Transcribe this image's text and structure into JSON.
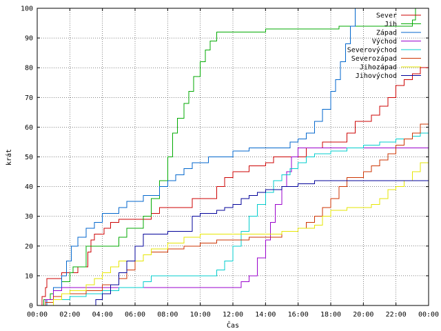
{
  "chart_data": {
    "type": "line",
    "title": "",
    "xlabel": "Čas",
    "ylabel": "krát",
    "xlim": [
      0,
      24
    ],
    "ylim": [
      0,
      100
    ],
    "x_ticks": [
      "00:00",
      "02:00",
      "04:00",
      "06:00",
      "08:00",
      "10:00",
      "12:00",
      "14:00",
      "16:00",
      "18:00",
      "20:00",
      "22:00",
      "00:00"
    ],
    "y_ticks": [
      0,
      10,
      20,
      30,
      40,
      50,
      60,
      70,
      80,
      90,
      100
    ],
    "grid": true,
    "legend_position": "top-right",
    "series": [
      {
        "name": "Sever",
        "color": "#cc0000",
        "points": [
          [
            0,
            0
          ],
          [
            0.3,
            3
          ],
          [
            0.5,
            6
          ],
          [
            0.6,
            9
          ],
          [
            1.5,
            11
          ],
          [
            2.5,
            13
          ],
          [
            3.1,
            18
          ],
          [
            3.3,
            22
          ],
          [
            3.5,
            24
          ],
          [
            4.1,
            26
          ],
          [
            4.5,
            28
          ],
          [
            5.0,
            29
          ],
          [
            6.5,
            29
          ],
          [
            7.0,
            31
          ],
          [
            7.5,
            33
          ],
          [
            8.5,
            33
          ],
          [
            9.5,
            36
          ],
          [
            10.5,
            36
          ],
          [
            11.0,
            40
          ],
          [
            11.5,
            43
          ],
          [
            12.0,
            45
          ],
          [
            13.0,
            47
          ],
          [
            14.0,
            48
          ],
          [
            14.5,
            50
          ],
          [
            15.5,
            50
          ],
          [
            16.5,
            53
          ],
          [
            17.5,
            55
          ],
          [
            18.5,
            55
          ],
          [
            19.0,
            58
          ],
          [
            19.5,
            62
          ],
          [
            20.5,
            64
          ],
          [
            21.0,
            67
          ],
          [
            21.5,
            70
          ],
          [
            22.0,
            74
          ],
          [
            22.5,
            76
          ],
          [
            23.0,
            78
          ],
          [
            23.5,
            80
          ],
          [
            24,
            80
          ]
        ]
      },
      {
        "name": "Jih",
        "color": "#00aa00",
        "points": [
          [
            0,
            0
          ],
          [
            0.4,
            2
          ],
          [
            0.8,
            4
          ],
          [
            1.0,
            6
          ],
          [
            1.5,
            8
          ],
          [
            2.0,
            11
          ],
          [
            2.2,
            13
          ],
          [
            3.0,
            20
          ],
          [
            4.0,
            20
          ],
          [
            5.0,
            23
          ],
          [
            5.5,
            26
          ],
          [
            6.5,
            30
          ],
          [
            7.0,
            36
          ],
          [
            7.5,
            42
          ],
          [
            8.0,
            50
          ],
          [
            8.3,
            58
          ],
          [
            8.6,
            63
          ],
          [
            9.0,
            68
          ],
          [
            9.3,
            72
          ],
          [
            9.6,
            77
          ],
          [
            10.0,
            82
          ],
          [
            10.3,
            86
          ],
          [
            10.6,
            89
          ],
          [
            11.0,
            92
          ],
          [
            12.0,
            92
          ],
          [
            13.0,
            92
          ],
          [
            14.0,
            93
          ],
          [
            15.0,
            93
          ],
          [
            16.0,
            93
          ],
          [
            17.0,
            93
          ],
          [
            18.0,
            93
          ],
          [
            18.5,
            94
          ],
          [
            19.5,
            94
          ],
          [
            20.5,
            94
          ],
          [
            21.5,
            94
          ],
          [
            22.5,
            94
          ],
          [
            23.0,
            96
          ],
          [
            23.2,
            100
          ],
          [
            24,
            100
          ]
        ]
      },
      {
        "name": "Západ",
        "color": "#0066cc",
        "points": [
          [
            0,
            0
          ],
          [
            0.6,
            2
          ],
          [
            1.0,
            6
          ],
          [
            1.5,
            10
          ],
          [
            1.8,
            15
          ],
          [
            2.1,
            20
          ],
          [
            2.5,
            23
          ],
          [
            3.0,
            26
          ],
          [
            3.5,
            28
          ],
          [
            4.0,
            31
          ],
          [
            5.0,
            33
          ],
          [
            5.5,
            35
          ],
          [
            6.5,
            37
          ],
          [
            7.5,
            40
          ],
          [
            8.0,
            42
          ],
          [
            8.5,
            44
          ],
          [
            9.0,
            46
          ],
          [
            9.5,
            48
          ],
          [
            10.5,
            50
          ],
          [
            12.0,
            52
          ],
          [
            13.0,
            53
          ],
          [
            14.0,
            53
          ],
          [
            15.0,
            53
          ],
          [
            15.5,
            55
          ],
          [
            16.0,
            56
          ],
          [
            16.5,
            58
          ],
          [
            17.0,
            62
          ],
          [
            17.5,
            66
          ],
          [
            18.0,
            72
          ],
          [
            18.3,
            76
          ],
          [
            18.6,
            82
          ],
          [
            18.9,
            88
          ],
          [
            19.2,
            94
          ],
          [
            19.5,
            100
          ],
          [
            24,
            100
          ]
        ]
      },
      {
        "name": "Východ",
        "color": "#9900cc",
        "points": [
          [
            0,
            0
          ],
          [
            0.5,
            2
          ],
          [
            1.0,
            5
          ],
          [
            1.5,
            6
          ],
          [
            6.0,
            6
          ],
          [
            7.0,
            6
          ],
          [
            8.0,
            6
          ],
          [
            9.0,
            6
          ],
          [
            10.0,
            6
          ],
          [
            11.0,
            6
          ],
          [
            12.0,
            6
          ],
          [
            12.5,
            8
          ],
          [
            13.0,
            10
          ],
          [
            13.5,
            16
          ],
          [
            14.0,
            22
          ],
          [
            14.3,
            28
          ],
          [
            14.6,
            34
          ],
          [
            15.0,
            40
          ],
          [
            15.3,
            45
          ],
          [
            15.6,
            50
          ],
          [
            16.0,
            53
          ],
          [
            17.0,
            53
          ],
          [
            18.0,
            53
          ],
          [
            19.0,
            53
          ],
          [
            20.0,
            53
          ],
          [
            21.0,
            53
          ],
          [
            22.0,
            53
          ],
          [
            23.0,
            53
          ],
          [
            23.5,
            53
          ],
          [
            24,
            55
          ]
        ]
      },
      {
        "name": "Severovýchod",
        "color": "#00cccc",
        "points": [
          [
            0,
            0
          ],
          [
            1.0,
            2
          ],
          [
            2.0,
            3
          ],
          [
            3.0,
            4
          ],
          [
            4.0,
            5
          ],
          [
            5.0,
            6
          ],
          [
            6.0,
            6
          ],
          [
            6.5,
            8
          ],
          [
            7.0,
            10
          ],
          [
            8.0,
            10
          ],
          [
            9.0,
            10
          ],
          [
            10.0,
            10
          ],
          [
            11.0,
            12
          ],
          [
            11.5,
            15
          ],
          [
            12.0,
            20
          ],
          [
            12.5,
            25
          ],
          [
            13.0,
            30
          ],
          [
            13.5,
            34
          ],
          [
            14.0,
            38
          ],
          [
            14.5,
            42
          ],
          [
            15.0,
            44
          ],
          [
            15.5,
            46
          ],
          [
            16.0,
            48
          ],
          [
            16.5,
            50
          ],
          [
            17.0,
            51
          ],
          [
            18.0,
            52
          ],
          [
            19.0,
            53
          ],
          [
            20.0,
            54
          ],
          [
            21.0,
            55
          ],
          [
            22.0,
            56
          ],
          [
            23.0,
            57
          ],
          [
            23.5,
            58
          ],
          [
            24,
            59
          ]
        ]
      },
      {
        "name": "Severozápad",
        "color": "#cc3300",
        "points": [
          [
            0,
            0
          ],
          [
            0.5,
            1
          ],
          [
            1.0,
            3
          ],
          [
            1.5,
            4
          ],
          [
            3.0,
            5
          ],
          [
            4.0,
            7
          ],
          [
            5.0,
            9
          ],
          [
            5.5,
            12
          ],
          [
            6.0,
            15
          ],
          [
            6.5,
            17
          ],
          [
            7.0,
            18
          ],
          [
            8.0,
            19
          ],
          [
            9.0,
            20
          ],
          [
            10.0,
            21
          ],
          [
            11.0,
            22
          ],
          [
            12.0,
            22
          ],
          [
            13.0,
            23
          ],
          [
            14.0,
            23
          ],
          [
            15.0,
            25
          ],
          [
            16.0,
            26
          ],
          [
            16.5,
            28
          ],
          [
            17.0,
            30
          ],
          [
            17.5,
            33
          ],
          [
            18.0,
            36
          ],
          [
            18.5,
            40
          ],
          [
            19.0,
            43
          ],
          [
            20.0,
            45
          ],
          [
            20.5,
            47
          ],
          [
            21.0,
            49
          ],
          [
            21.5,
            51
          ],
          [
            22.0,
            54
          ],
          [
            22.5,
            56
          ],
          [
            23.0,
            58
          ],
          [
            23.5,
            61
          ],
          [
            24,
            64
          ]
        ]
      },
      {
        "name": "Jihozápad",
        "color": "#e6e600",
        "points": [
          [
            0,
            0
          ],
          [
            1.0,
            2
          ],
          [
            1.5,
            4
          ],
          [
            2.0,
            5
          ],
          [
            3.0,
            7
          ],
          [
            3.5,
            9
          ],
          [
            4.0,
            11
          ],
          [
            4.5,
            13
          ],
          [
            5.0,
            15
          ],
          [
            6.5,
            17
          ],
          [
            7.0,
            19
          ],
          [
            8.0,
            21
          ],
          [
            9.0,
            23
          ],
          [
            10.0,
            24
          ],
          [
            11.0,
            24
          ],
          [
            12.0,
            24
          ],
          [
            13.0,
            24
          ],
          [
            14.0,
            24
          ],
          [
            15.0,
            25
          ],
          [
            16.0,
            26
          ],
          [
            17.0,
            27
          ],
          [
            17.5,
            30
          ],
          [
            18.0,
            32
          ],
          [
            19.0,
            33
          ],
          [
            20.0,
            33
          ],
          [
            20.5,
            34
          ],
          [
            21.0,
            36
          ],
          [
            21.5,
            39
          ],
          [
            22.0,
            40
          ],
          [
            22.5,
            42
          ],
          [
            23.0,
            45
          ],
          [
            23.5,
            48
          ],
          [
            24,
            49
          ]
        ]
      },
      {
        "name": "Jihovýchod",
        "color": "#000099",
        "points": [
          [
            0,
            0
          ],
          [
            3.5,
            0
          ],
          [
            3.6,
            2
          ],
          [
            4.0,
            4
          ],
          [
            4.5,
            7
          ],
          [
            5.0,
            11
          ],
          [
            5.5,
            15
          ],
          [
            6.0,
            20
          ],
          [
            6.5,
            24
          ],
          [
            8.0,
            25
          ],
          [
            9.0,
            25
          ],
          [
            9.5,
            30
          ],
          [
            10.0,
            31
          ],
          [
            11.0,
            32
          ],
          [
            11.5,
            33
          ],
          [
            12.0,
            34
          ],
          [
            12.5,
            36
          ],
          [
            13.0,
            37
          ],
          [
            13.5,
            38
          ],
          [
            14.0,
            39
          ],
          [
            15.0,
            40
          ],
          [
            16.0,
            41
          ],
          [
            17.0,
            42
          ],
          [
            18.0,
            42
          ],
          [
            19.0,
            42
          ],
          [
            20.0,
            42
          ],
          [
            21.0,
            42
          ],
          [
            22.0,
            42
          ],
          [
            23.0,
            42
          ],
          [
            24,
            42
          ]
        ]
      }
    ]
  }
}
